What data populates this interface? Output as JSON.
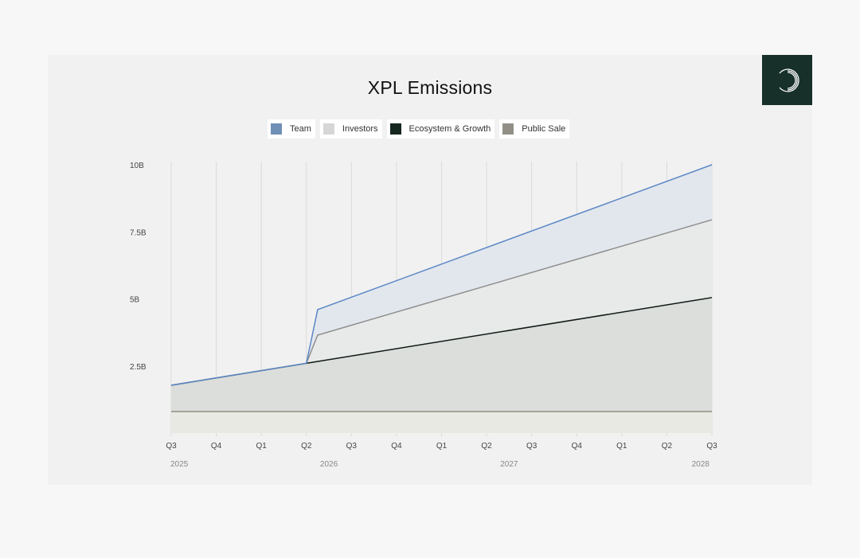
{
  "chart_data": {
    "type": "area",
    "title": "XPL Emissions",
    "xlabel": "",
    "ylabel": "",
    "legend_position": "top-center",
    "grid": {
      "vertical": true,
      "horizontal": false
    },
    "quarters": [
      "Q3",
      "Q4",
      "Q1",
      "Q2",
      "Q3",
      "Q4",
      "Q1",
      "Q2",
      "Q3",
      "Q4",
      "Q1",
      "Q2",
      "Q3"
    ],
    "years": [
      {
        "label": "2025",
        "quarter_index": 0
      },
      {
        "label": "2026",
        "quarter_index": 3.5
      },
      {
        "label": "2027",
        "quarter_index": 7.5
      },
      {
        "label": "2028",
        "quarter_index": 11.5
      }
    ],
    "y_ticks": [
      {
        "label": "10B",
        "value": 10
      },
      {
        "label": "7.5B",
        "value": 7.5
      },
      {
        "label": "5B",
        "value": 5
      },
      {
        "label": "2.5B",
        "value": 2.5
      }
    ],
    "ylim": [
      0,
      10
    ],
    "y_unit": "B XPL",
    "x_unit": "quarters since Q3 2025",
    "series": [
      {
        "name": "Public Sale",
        "color": "#8f8d84",
        "fill": "#e9e9e4",
        "points": [
          [
            0,
            0.8
          ],
          [
            12,
            0.8
          ]
        ]
      },
      {
        "name": "Ecosystem & Growth",
        "color": "#111a16",
        "fill": "#dcdedb",
        "points": [
          [
            0,
            1.78
          ],
          [
            3,
            2.6
          ],
          [
            12,
            5.05
          ]
        ]
      },
      {
        "name": "Investors",
        "color": "#8e8e8e",
        "fill": "#e8eaea",
        "points": [
          [
            0,
            1.78
          ],
          [
            3,
            2.6
          ],
          [
            3.25,
            3.65
          ],
          [
            12,
            7.95
          ]
        ]
      },
      {
        "name": "Team",
        "color": "#5b87c5",
        "fill": "#e2e7ee",
        "points": [
          [
            0,
            1.78
          ],
          [
            3,
            2.6
          ],
          [
            3.25,
            4.6
          ],
          [
            12,
            10.0
          ]
        ]
      }
    ]
  },
  "legend": [
    {
      "label": "Team",
      "color": "#6f8fb6"
    },
    {
      "label": "Investors",
      "color": "#d6d6d6"
    },
    {
      "label": "Ecosystem & Growth",
      "color": "#15271f"
    },
    {
      "label": "Public Sale",
      "color": "#929086"
    }
  ],
  "logo": {
    "icon": "circle-swirl-logo-icon",
    "background": "#17302a"
  }
}
